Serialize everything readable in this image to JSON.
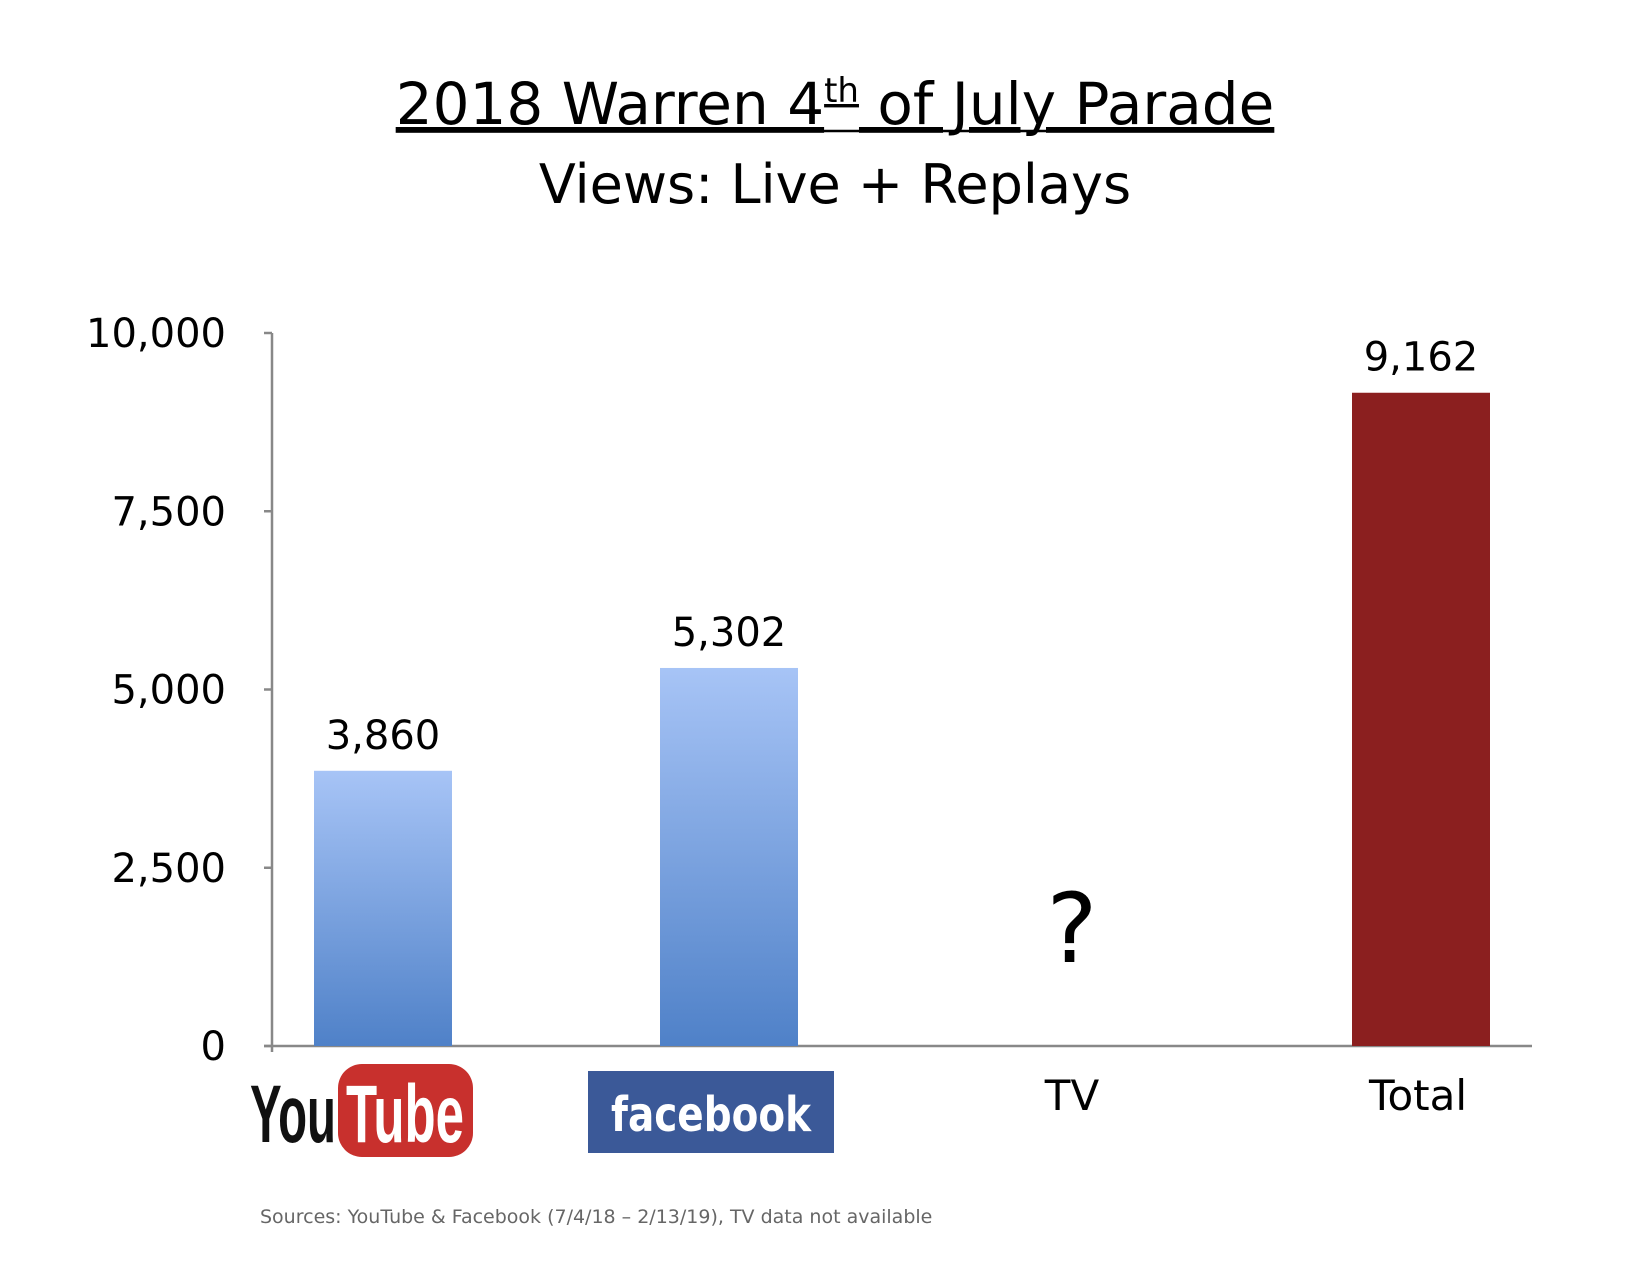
{
  "chart_data": {
    "type": "bar",
    "title": "2018 Warren 4th of July Parade",
    "title_parts": {
      "pre": "2018 Warren 4",
      "sup": "th",
      "post": " of July Parade"
    },
    "subtitle": "Views: Live + Replays",
    "categories": [
      "YouTube",
      "facebook",
      "TV",
      "Total"
    ],
    "values": [
      3860,
      5302,
      null,
      9162
    ],
    "data_labels": [
      "3,860",
      "5,302",
      "?",
      "9,162"
    ],
    "logo_text": {
      "youtube_you": "You",
      "youtube_tube": "Tube",
      "facebook": "facebook"
    },
    "category_text": [
      "",
      "",
      "TV",
      "Total"
    ],
    "yticks": [
      0,
      2500,
      5000,
      7500,
      10000
    ],
    "ytick_labels": [
      "0",
      "2,500",
      "5,000",
      "7,500",
      "10,000"
    ],
    "ylim": [
      0,
      10000
    ],
    "grid": false,
    "legend": "none",
    "colors": {
      "bar_gradient_top": "#a7c4f6",
      "bar_gradient_bottom": "#4f81c8",
      "total_bar": "#8b1f1f",
      "axis": "#888888",
      "youtube_red": "#c8302d",
      "facebook_blue": "#3b5998"
    }
  },
  "source_note": "Sources: YouTube & Facebook (7/4/18 – 2/13/19), TV data not available"
}
